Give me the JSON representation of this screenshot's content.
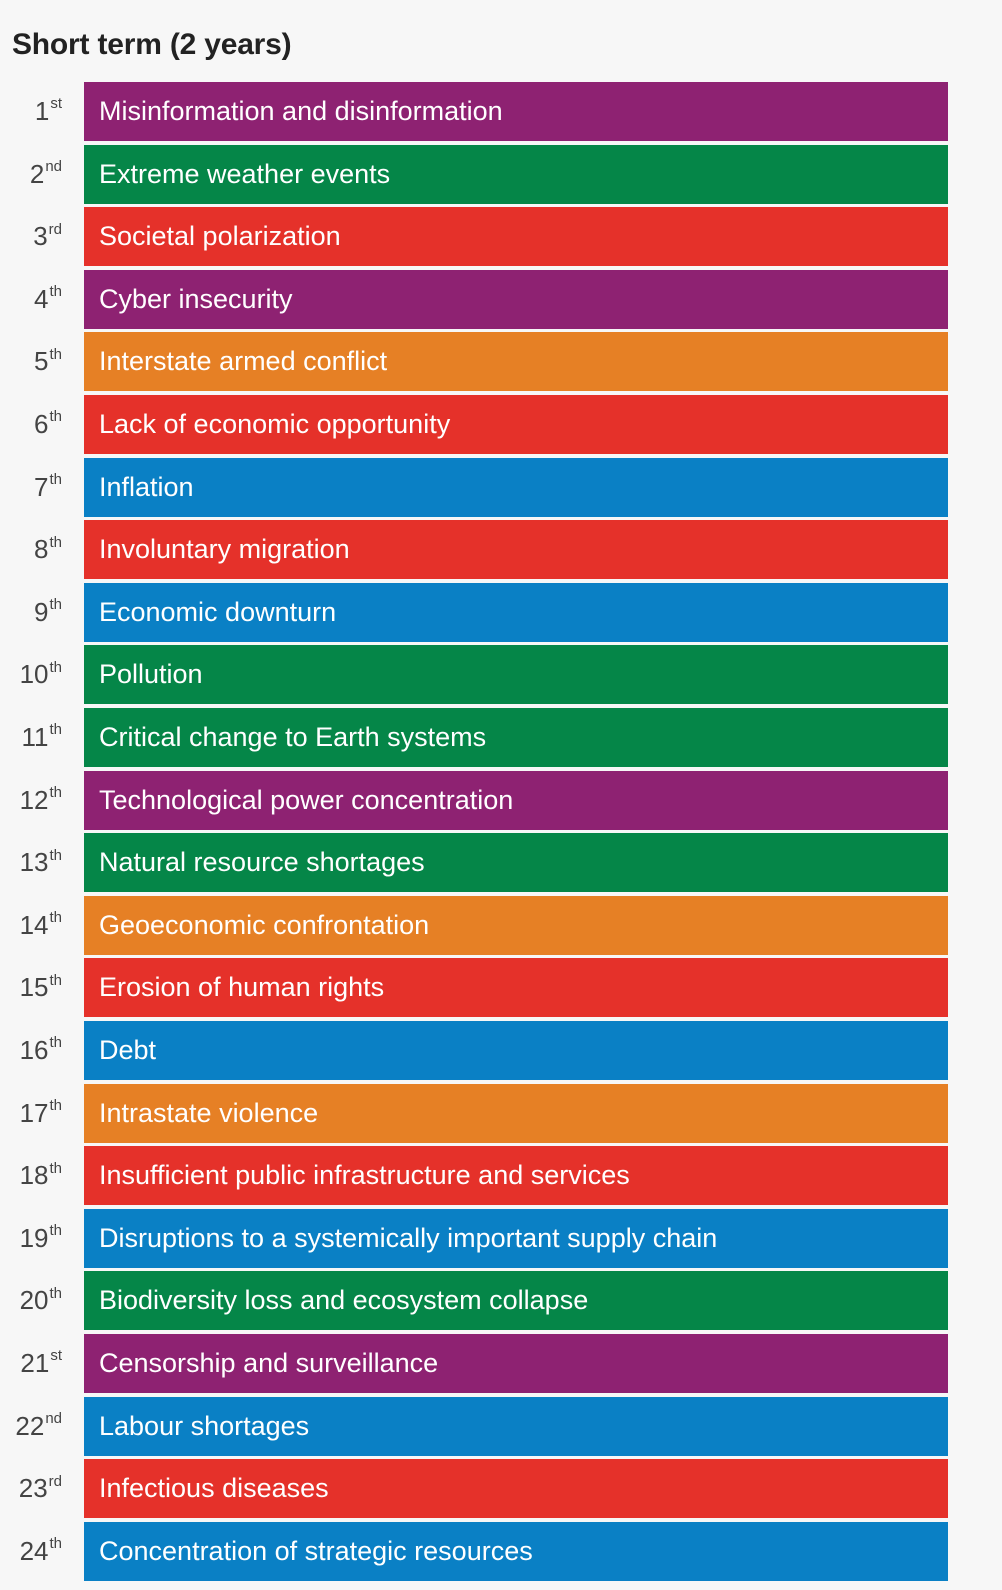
{
  "chart_data": {
    "type": "table",
    "title": "Short term (2 years)",
    "colors": {
      "purple": "#8e2272",
      "green": "#058648",
      "red": "#e5312a",
      "orange": "#e68025",
      "blue": "#0a80c5"
    },
    "rows": [
      {
        "rank": "1",
        "suffix": "st",
        "label": "Misinformation and disinformation",
        "color": "#8e2272"
      },
      {
        "rank": "2",
        "suffix": "nd",
        "label": "Extreme weather events",
        "color": "#058648"
      },
      {
        "rank": "3",
        "suffix": "rd",
        "label": "Societal polarization",
        "color": "#e5312a"
      },
      {
        "rank": "4",
        "suffix": "th",
        "label": "Cyber insecurity",
        "color": "#8e2272"
      },
      {
        "rank": "5",
        "suffix": "th",
        "label": "Interstate armed conflict",
        "color": "#e68025"
      },
      {
        "rank": "6",
        "suffix": "th",
        "label": "Lack of economic opportunity",
        "color": "#e5312a"
      },
      {
        "rank": "7",
        "suffix": "th",
        "label": "Inflation",
        "color": "#0a80c5"
      },
      {
        "rank": "8",
        "suffix": "th",
        "label": "Involuntary migration",
        "color": "#e5312a"
      },
      {
        "rank": "9",
        "suffix": "th",
        "label": "Economic downturn",
        "color": "#0a80c5"
      },
      {
        "rank": "10",
        "suffix": "th",
        "label": "Pollution",
        "color": "#058648"
      },
      {
        "rank": "11",
        "suffix": "th",
        "label": "Critical change to Earth systems",
        "color": "#058648"
      },
      {
        "rank": "12",
        "suffix": "th",
        "label": "Technological power concentration",
        "color": "#8e2272"
      },
      {
        "rank": "13",
        "suffix": "th",
        "label": "Natural resource shortages",
        "color": "#058648"
      },
      {
        "rank": "14",
        "suffix": "th",
        "label": "Geoeconomic confrontation",
        "color": "#e68025"
      },
      {
        "rank": "15",
        "suffix": "th",
        "label": "Erosion of human rights",
        "color": "#e5312a"
      },
      {
        "rank": "16",
        "suffix": "th",
        "label": "Debt",
        "color": "#0a80c5"
      },
      {
        "rank": "17",
        "suffix": "th",
        "label": "Intrastate violence",
        "color": "#e68025"
      },
      {
        "rank": "18",
        "suffix": "th",
        "label": "Insufficient public infrastructure and services",
        "color": "#e5312a"
      },
      {
        "rank": "19",
        "suffix": "th",
        "label": "Disruptions to a systemically important supply chain",
        "color": "#0a80c5"
      },
      {
        "rank": "20",
        "suffix": "th",
        "label": "Biodiversity loss and ecosystem collapse",
        "color": "#058648"
      },
      {
        "rank": "21",
        "suffix": "st",
        "label": "Censorship and surveillance",
        "color": "#8e2272"
      },
      {
        "rank": "22",
        "suffix": "nd",
        "label": "Labour shortages",
        "color": "#0a80c5"
      },
      {
        "rank": "23",
        "suffix": "rd",
        "label": "Infectious diseases",
        "color": "#e5312a"
      },
      {
        "rank": "24",
        "suffix": "th",
        "label": "Concentration of strategic resources",
        "color": "#0a80c5"
      }
    ]
  }
}
